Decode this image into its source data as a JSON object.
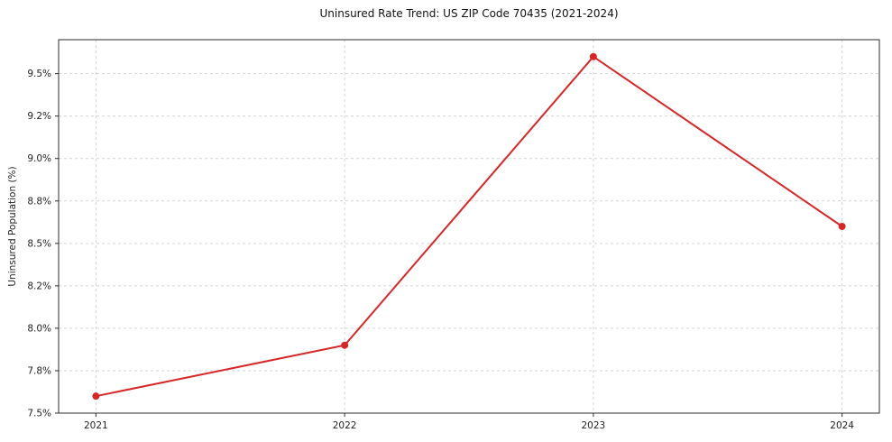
{
  "chart_data": {
    "type": "line",
    "title": "Uninsured Rate Trend: US ZIP Code 70435 (2021-2024)",
    "xlabel": "",
    "ylabel": "Uninsured Population (%)",
    "x": [
      2021,
      2022,
      2023,
      2024
    ],
    "xtick_labels": [
      "2021",
      "2022",
      "2023",
      "2024"
    ],
    "values": [
      7.6,
      7.9,
      9.6,
      8.6
    ],
    "yticks": [
      7.5,
      7.75,
      8.0,
      8.25,
      8.5,
      8.75,
      9.0,
      9.25,
      9.5
    ],
    "ytick_labels": [
      "7.5%",
      "7.8%",
      "8.0%",
      "8.2%",
      "8.5%",
      "8.8%",
      "9.0%",
      "9.2%",
      "9.5%"
    ],
    "ylim": [
      7.5,
      9.7
    ],
    "xlim": [
      2020.85,
      2024.15
    ],
    "grid": true,
    "grid_style": "dashed",
    "legend": "none",
    "line_color": "#d62728",
    "marker": "circle",
    "grid_color": "#d3d3d3",
    "axis_color": "#2b2b2b"
  }
}
